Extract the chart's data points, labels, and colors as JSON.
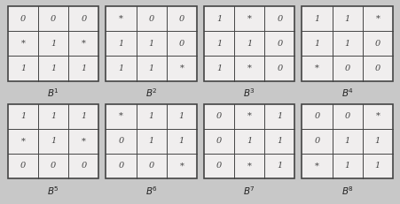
{
  "grids": [
    {
      "label": "1",
      "cells": [
        [
          "0",
          "0",
          "0"
        ],
        [
          "*",
          "1",
          "*"
        ],
        [
          "1",
          "1",
          "1"
        ]
      ]
    },
    {
      "label": "2",
      "cells": [
        [
          "*",
          "0",
          "0"
        ],
        [
          "1",
          "1",
          "0"
        ],
        [
          "1",
          "1",
          "*"
        ]
      ]
    },
    {
      "label": "3",
      "cells": [
        [
          "1",
          "*",
          "0"
        ],
        [
          "1",
          "1",
          "0"
        ],
        [
          "1",
          "*",
          "0"
        ]
      ]
    },
    {
      "label": "4",
      "cells": [
        [
          "1",
          "1",
          "*"
        ],
        [
          "1",
          "1",
          "0"
        ],
        [
          "*",
          "0",
          "0"
        ]
      ]
    },
    {
      "label": "5",
      "cells": [
        [
          "1",
          "1",
          "1"
        ],
        [
          "*",
          "1",
          "*"
        ],
        [
          "0",
          "0",
          "0"
        ]
      ]
    },
    {
      "label": "6",
      "cells": [
        [
          "*",
          "1",
          "1"
        ],
        [
          "0",
          "1",
          "1"
        ],
        [
          "0",
          "0",
          "*"
        ]
      ]
    },
    {
      "label": "7",
      "cells": [
        [
          "0",
          "*",
          "1"
        ],
        [
          "0",
          "1",
          "1"
        ],
        [
          "0",
          "*",
          "1"
        ]
      ]
    },
    {
      "label": "8",
      "cells": [
        [
          "0",
          "0",
          "*"
        ],
        [
          "0",
          "1",
          "1"
        ],
        [
          "*",
          "1",
          "1"
        ]
      ]
    }
  ],
  "fig_bg": "#c8c8c8",
  "cell_bg": "#f0eeee",
  "grid_border_color": "#444444",
  "text_color": "#444444",
  "label_color": "#222222",
  "num_cols": 4,
  "num_rows": 2
}
